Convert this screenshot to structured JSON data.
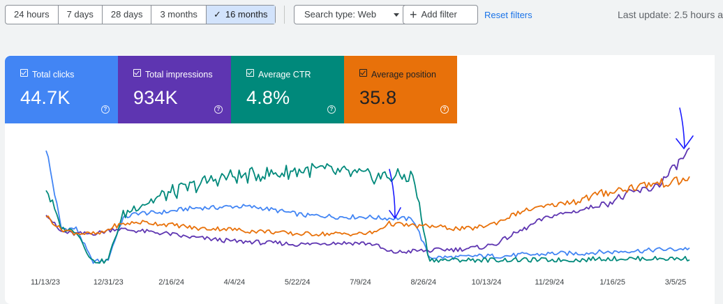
{
  "toolbar": {
    "ranges": [
      "24 hours",
      "7 days",
      "28 days",
      "3 months",
      "16 months"
    ],
    "active_range": "16 months",
    "search_type": "Search type: Web",
    "add_filter": "Add filter",
    "reset_filters": "Reset filters",
    "last_update": "Last update: 2.5 hours a"
  },
  "metrics": [
    {
      "label": "Total clicks",
      "value": "44.7K",
      "color": "#4285f4"
    },
    {
      "label": "Total impressions",
      "value": "934K",
      "color": "#5e35b1"
    },
    {
      "label": "Average CTR",
      "value": "4.8%",
      "color": "#00897b"
    },
    {
      "label": "Average position",
      "value": "35.8",
      "color": "#e8710a"
    }
  ],
  "chart_data": {
    "type": "line",
    "x_tick_labels": [
      "11/13/23",
      "12/31/23",
      "2/16/24",
      "4/4/24",
      "5/22/24",
      "7/9/24",
      "8/26/24",
      "10/13/24",
      "11/29/24",
      "1/16/25",
      "3/5/25"
    ],
    "y_scale": "independent per series (no axis shown)",
    "series": [
      {
        "name": "Total clicks",
        "color": "#4285f4",
        "values": [
          0.92,
          0.3,
          0.3,
          0.05,
          0.05,
          0.38,
          0.42,
          0.42,
          0.43,
          0.45,
          0.46,
          0.46,
          0.47,
          0.47,
          0.46,
          0.44,
          0.42,
          0.4,
          0.4,
          0.39,
          0.39,
          0.39,
          0.38,
          0.38,
          0.37,
          0.08,
          0.08,
          0.08,
          0.09,
          0.09,
          0.09,
          0.1,
          0.1,
          0.11,
          0.11,
          0.11,
          0.12,
          0.12,
          0.13,
          0.13,
          0.14,
          0.14,
          0.15
        ]
      },
      {
        "name": "Total impressions",
        "color": "#5e35b1",
        "values": [
          0.42,
          0.28,
          0.26,
          0.26,
          0.27,
          0.3,
          0.29,
          0.28,
          0.27,
          0.26,
          0.24,
          0.23,
          0.22,
          0.21,
          0.2,
          0.2,
          0.19,
          0.19,
          0.18,
          0.18,
          0.19,
          0.19,
          0.19,
          0.19,
          0.18,
          0.12,
          0.12,
          0.13,
          0.13,
          0.14,
          0.14,
          0.15,
          0.16,
          0.19,
          0.25,
          0.3,
          0.36,
          0.4,
          0.42,
          0.44,
          0.47,
          0.5,
          0.54,
          0.58,
          0.6,
          0.66,
          0.78,
          0.9
        ]
      },
      {
        "name": "Average CTR",
        "color": "#00897b",
        "values": [
          0.62,
          0.3,
          0.28,
          0.05,
          0.05,
          0.4,
          0.48,
          0.52,
          0.57,
          0.6,
          0.64,
          0.68,
          0.7,
          0.7,
          0.72,
          0.72,
          0.74,
          0.75,
          0.75,
          0.73,
          0.72,
          0.7,
          0.7,
          0.7,
          0.7,
          0.06,
          0.06,
          0.06,
          0.06,
          0.06,
          0.06,
          0.06,
          0.06,
          0.06,
          0.06,
          0.06,
          0.07,
          0.07,
          0.07,
          0.07,
          0.07,
          0.07,
          0.07
        ]
      },
      {
        "name": "Average position",
        "color": "#e8710a",
        "values": [
          0.4,
          0.3,
          0.27,
          0.26,
          0.26,
          0.32,
          0.34,
          0.35,
          0.34,
          0.33,
          0.32,
          0.3,
          0.3,
          0.3,
          0.29,
          0.28,
          0.28,
          0.27,
          0.26,
          0.26,
          0.26,
          0.26,
          0.26,
          0.26,
          0.27,
          0.34,
          0.33,
          0.32,
          0.32,
          0.31,
          0.3,
          0.3,
          0.32,
          0.35,
          0.4,
          0.44,
          0.46,
          0.48,
          0.5,
          0.52,
          0.55,
          0.58,
          0.6,
          0.62,
          0.64,
          0.65,
          0.66,
          0.68
        ]
      }
    ]
  }
}
